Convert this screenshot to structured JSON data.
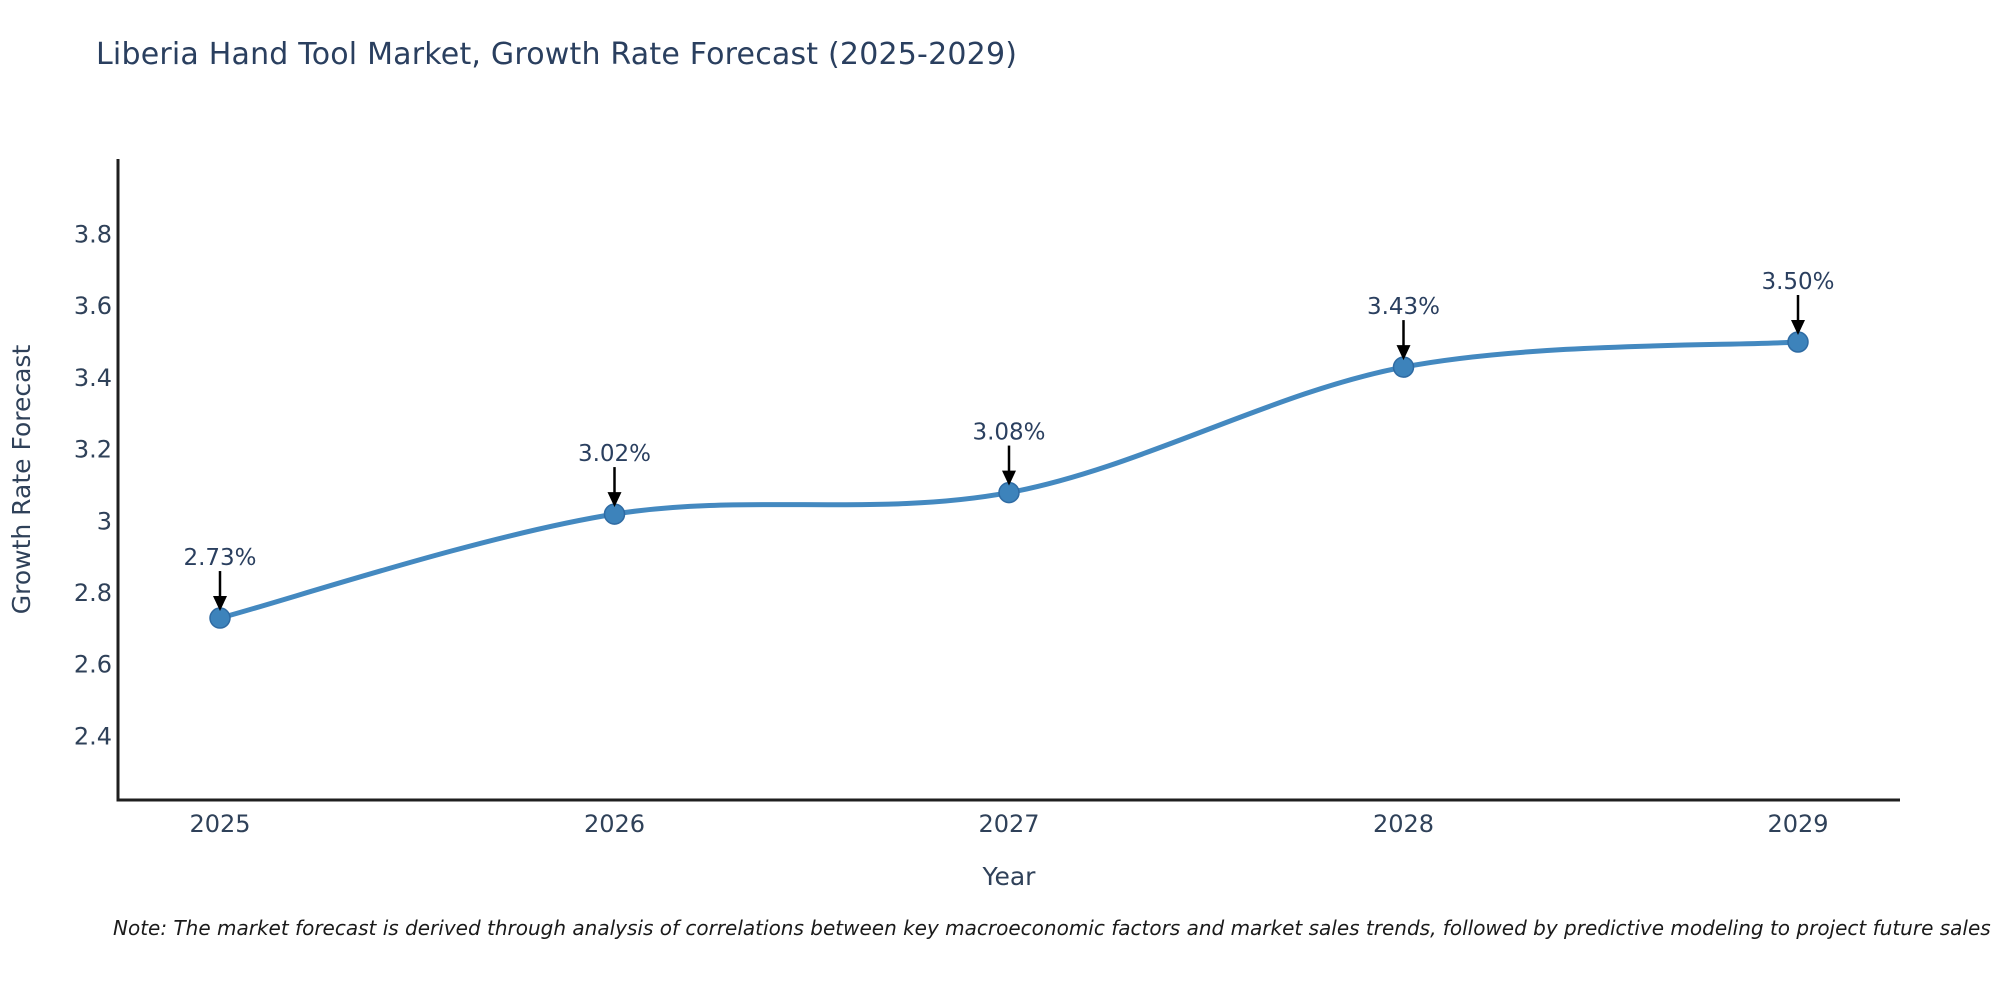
{
  "title": "Liberia Hand Tool Market, Growth Rate Forecast (2025-2029)",
  "note": "Note: The market forecast is derived through analysis of correlations between key macroeconomic factors and market sales trends, followed by predictive modeling to project future sales",
  "chart_data": {
    "type": "line",
    "title": "Liberia Hand Tool Market, Growth Rate Forecast (2025-2029)",
    "xlabel": "Year",
    "ylabel": "Growth Rate Forecast",
    "x": [
      2025,
      2026,
      2027,
      2028,
      2029
    ],
    "y": [
      2.73,
      3.02,
      3.08,
      3.43,
      3.5
    ],
    "point_labels": [
      "2.73%",
      "3.02%",
      "3.08%",
      "3.43%",
      "3.50%"
    ],
    "xtick_labels": [
      "2025",
      "2026",
      "2027",
      "2028",
      "2029"
    ],
    "yticks": [
      3.8,
      3.6,
      3.4,
      3.2,
      3.0,
      2.8,
      2.6,
      2.4
    ],
    "ytick_labels": [
      "3.8",
      "3.6",
      "3.4",
      "3.2",
      "3",
      "2.8",
      "2.6",
      "2.4"
    ],
    "xlim": [
      2024.74,
      2029.26
    ],
    "ylim": [
      2.22,
      4.01
    ],
    "line_shape": "spline",
    "grid": false,
    "legend": "none",
    "colors": {
      "line": "#4489c0",
      "marker_fill": "#3d83bb",
      "marker_edge": "#2f6ba3",
      "axis_line": "#1f1f1f",
      "tick_text": "#2f4159",
      "title_text": "#2a3f5f",
      "annotation_text": "#2a3f5f",
      "arrow": "#000000",
      "background": "#ffffff"
    }
  }
}
